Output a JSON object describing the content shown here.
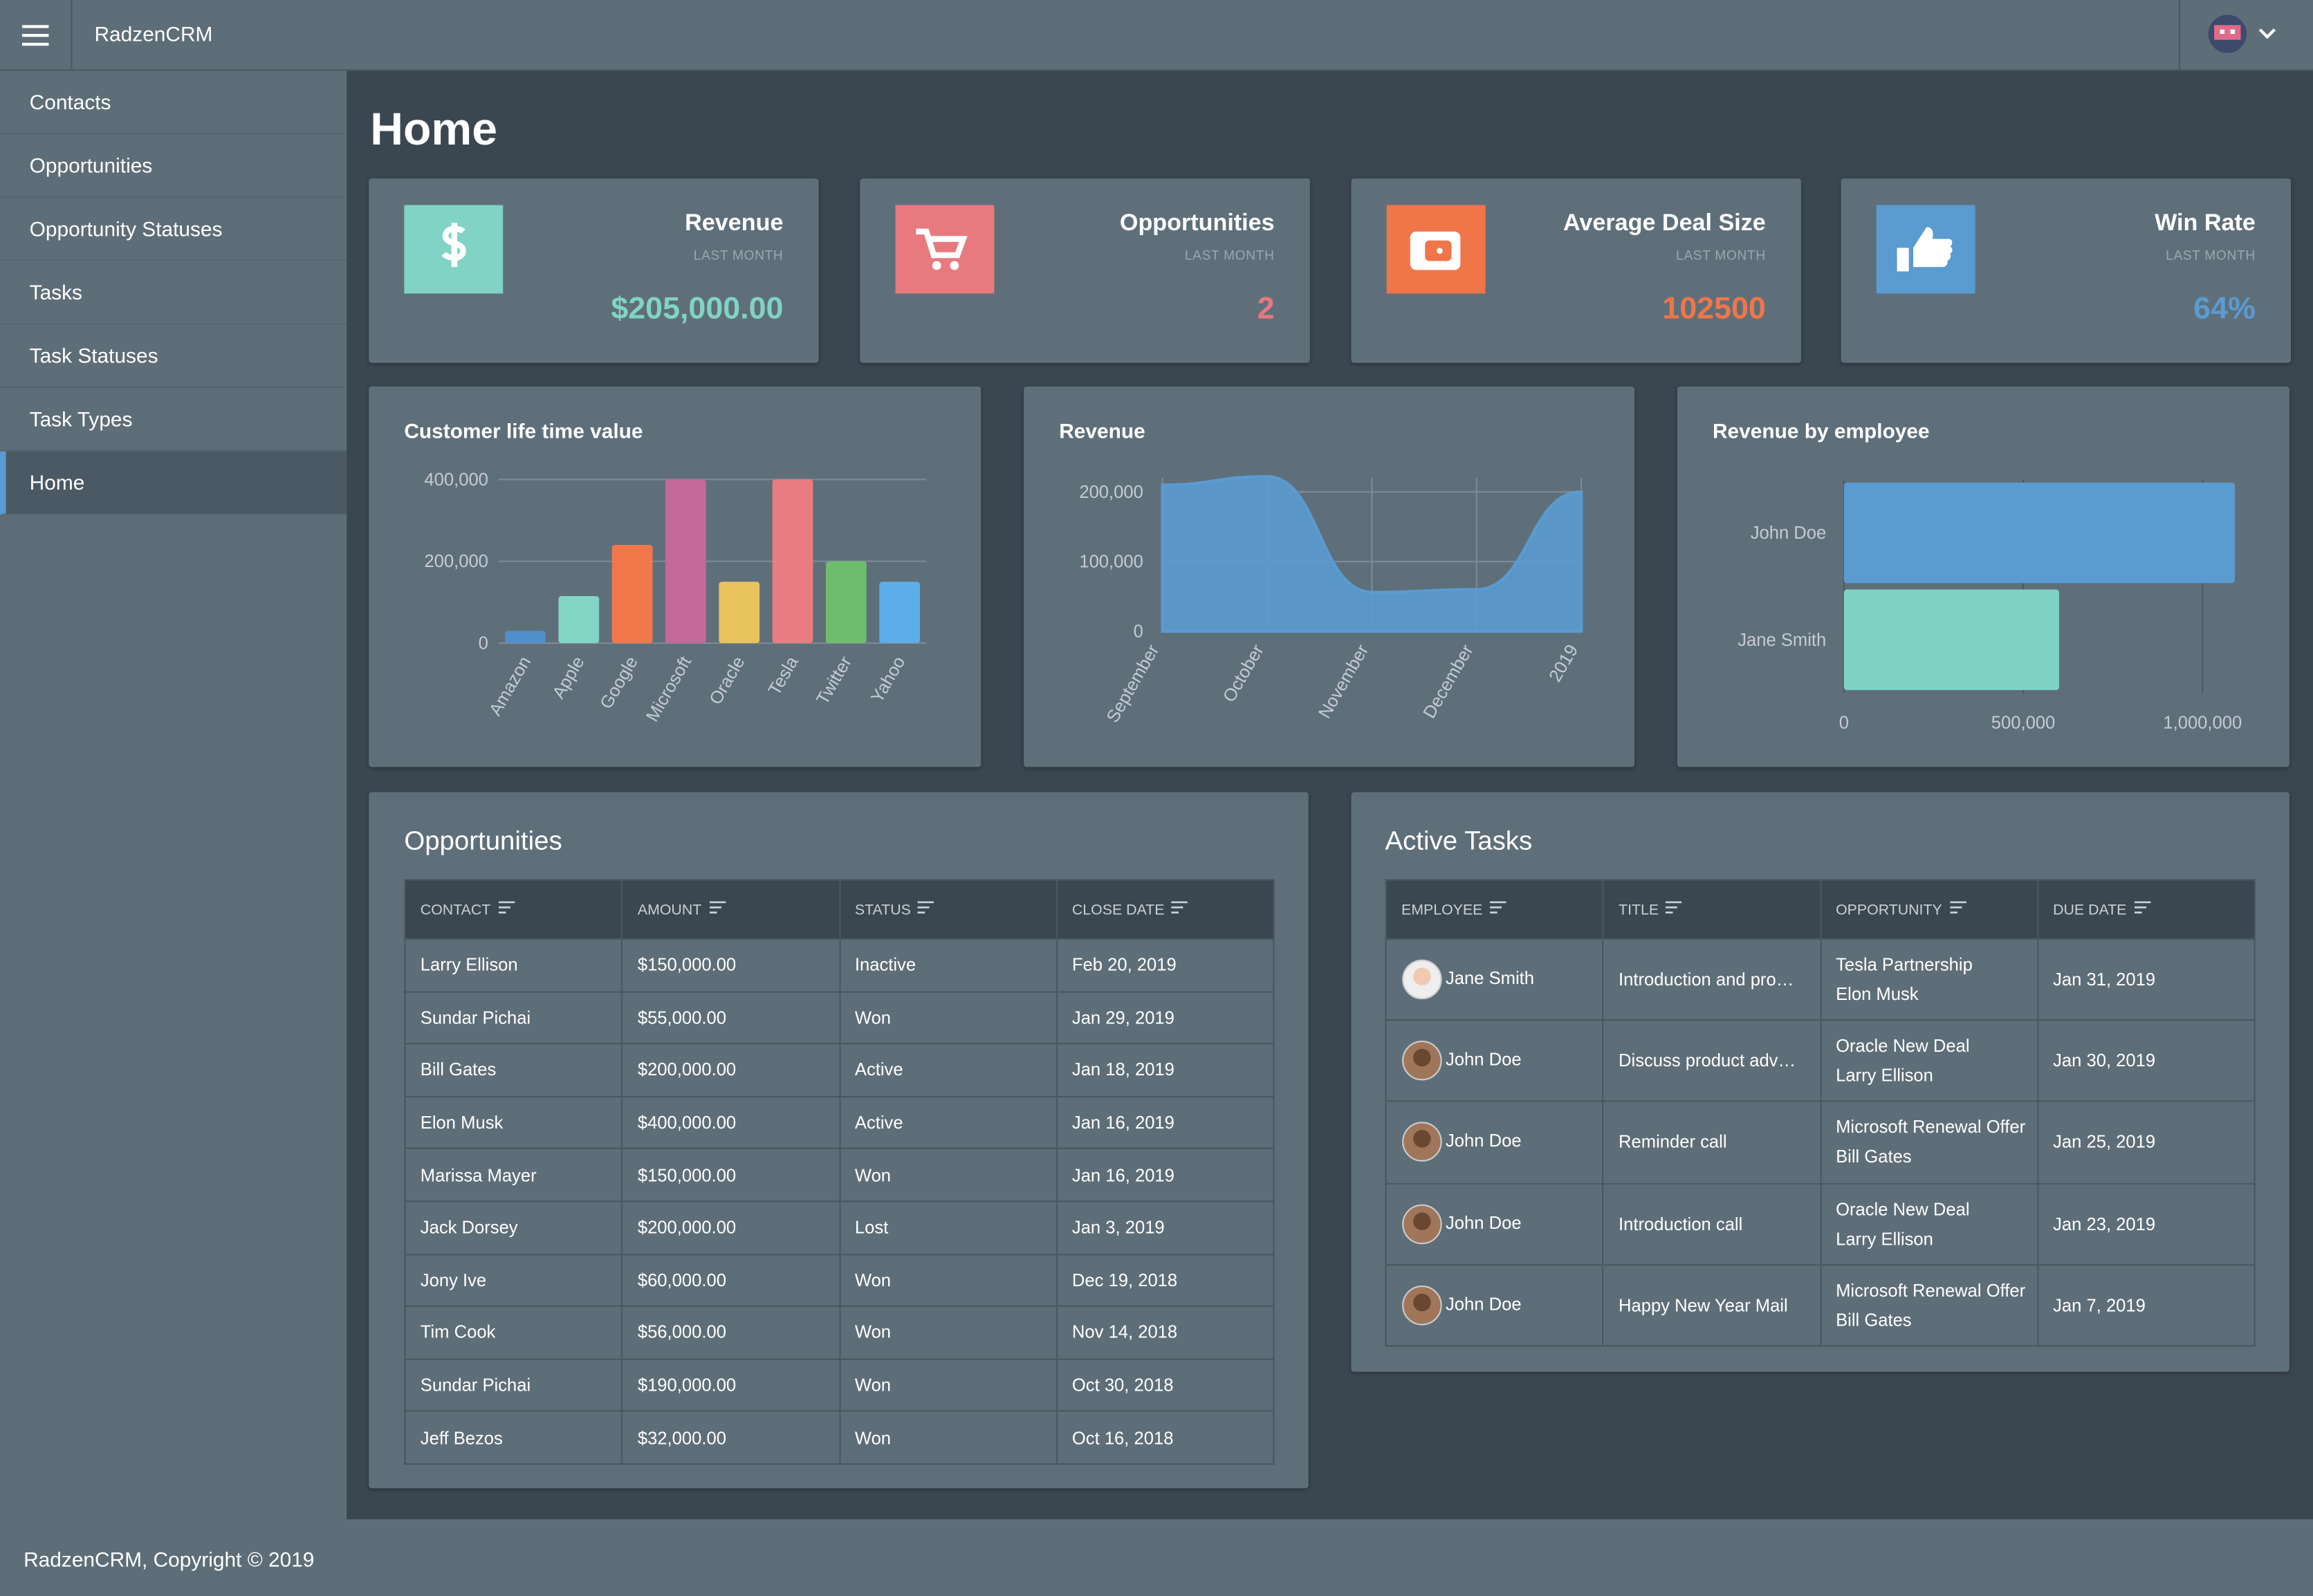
{
  "header": {
    "brand": "RadzenCRM"
  },
  "sidebar": [
    "Contacts",
    "Opportunities",
    "Opportunity Statuses",
    "Tasks",
    "Task Statuses",
    "Task Types",
    "Home"
  ],
  "page_title": "Home",
  "cards": [
    {
      "title": "Revenue",
      "subtitle": "LAST MONTH",
      "value": "$205,000.00",
      "color": "#80d3c5"
    },
    {
      "title": "Opportunities",
      "subtitle": "LAST MONTH",
      "value": 2,
      "color": "#e8797f"
    },
    {
      "title": "Average Deal Size",
      "subtitle": "LAST MONTH",
      "value": 102500,
      "color": "#f0764a"
    },
    {
      "title": "Win Rate",
      "subtitle": "LAST MONTH",
      "value": "64%",
      "color": "#5a9bd0"
    }
  ],
  "chart_data": [
    {
      "type": "bar",
      "title": "Customer life time value",
      "categories": [
        "Amazon",
        "Apple",
        "Google",
        "Microsoft",
        "Oracle",
        "Tesla",
        "Twitter",
        "Yahoo"
      ],
      "values": [
        30000,
        115000,
        240000,
        400000,
        150000,
        400000,
        200000,
        150000
      ],
      "colors": [
        "#4f90cc",
        "#82d4c4",
        "#f1784a",
        "#c4689a",
        "#e8c35b",
        "#e97c82",
        "#6dbd6d",
        "#5dade8"
      ],
      "ylim": [
        0,
        400000
      ],
      "yticks": [
        0,
        {
          "value": 200000,
          "label": "200,000"
        },
        {
          "value": 400000,
          "label": "400,000"
        }
      ],
      "grid": true
    },
    {
      "type": "area",
      "title": "Revenue",
      "categories": [
        "September",
        "October",
        "November",
        "December",
        "2019"
      ],
      "values": [
        210000,
        222000,
        56000,
        60000,
        200000
      ],
      "color": "#5a9bd0",
      "ylim": [
        0,
        220000
      ],
      "yticks": [
        0,
        {
          "value": 100000,
          "label": "100,000"
        },
        {
          "value": 200000,
          "label": "200,000"
        }
      ],
      "grid": true
    },
    {
      "type": "hbar",
      "title": "Revenue by employee",
      "categories": [
        "John Doe",
        "Jane Smith"
      ],
      "values": [
        1090000,
        600000
      ],
      "colors": [
        "#5a9bd0",
        "#7fd3c5"
      ],
      "xlim": [
        0,
        1090000
      ],
      "xticks": [
        0,
        {
          "value": 500000,
          "label": "500,000"
        },
        {
          "value": 1000000,
          "label": "1,000,000"
        }
      ],
      "grid": true
    }
  ],
  "opportunities": {
    "title": "Opportunities",
    "columns": [
      "CONTACT",
      "AMOUNT",
      "STATUS",
      "CLOSE DATE"
    ],
    "rows": [
      [
        "Larry Ellison",
        "$150,000.00",
        "Inactive",
        "Feb 20, 2019"
      ],
      [
        "Sundar Pichai",
        "$55,000.00",
        "Won",
        "Jan 29, 2019"
      ],
      [
        "Bill Gates",
        "$200,000.00",
        "Active",
        "Jan 18, 2019"
      ],
      [
        "Elon Musk",
        "$400,000.00",
        "Active",
        "Jan 16, 2019"
      ],
      [
        "Marissa Mayer",
        "$150,000.00",
        "Won",
        "Jan 16, 2019"
      ],
      [
        "Jack Dorsey",
        "$200,000.00",
        "Lost",
        "Jan 3, 2019"
      ],
      [
        "Jony Ive",
        "$60,000.00",
        "Won",
        "Dec 19, 2018"
      ],
      [
        "Tim Cook",
        "$56,000.00",
        "Won",
        "Nov 14, 2018"
      ],
      [
        "Sundar Pichai",
        "$190,000.00",
        "Won",
        "Oct 30, 2018"
      ],
      [
        "Jeff Bezos",
        "$32,000.00",
        "Won",
        "Oct 16, 2018"
      ]
    ]
  },
  "tasks": {
    "title": "Active Tasks",
    "columns": [
      "EMPLOYEE",
      "TITLE",
      "OPPORTUNITY",
      "DUE DATE"
    ],
    "rows": [
      {
        "employee": "Jane Smith",
        "title": "Introduction and pro…",
        "opportunity": "Tesla Partnership",
        "contact": "Elon Musk",
        "due": "Jan 31, 2019"
      },
      {
        "employee": "John Doe",
        "title": "Discuss product adv…",
        "opportunity": "Oracle New Deal",
        "contact": "Larry Ellison",
        "due": "Jan 30, 2019"
      },
      {
        "employee": "John Doe",
        "title": "Reminder call",
        "opportunity": "Microsoft Renewal Offer",
        "contact": "Bill Gates",
        "due": "Jan 25, 2019"
      },
      {
        "employee": "John Doe",
        "title": "Introduction call",
        "opportunity": "Oracle New Deal",
        "contact": "Larry Ellison",
        "due": "Jan 23, 2019"
      },
      {
        "employee": "John Doe",
        "title": "Happy New Year Mail",
        "opportunity": "Microsoft Renewal Offer",
        "contact": "Bill Gates",
        "due": "Jan 7, 2019"
      }
    ]
  },
  "footer": "RadzenCRM, Copyright © 2019"
}
